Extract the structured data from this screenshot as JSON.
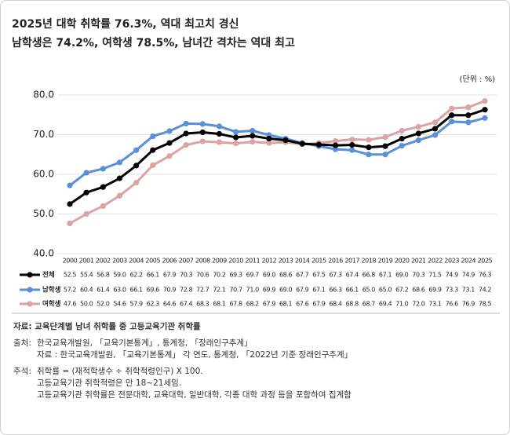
{
  "chart_data": {
    "type": "line",
    "title": "2025년 대학 취학률 76.3%, 역대 최고치 경신",
    "subtitle": "남학생은 74.2%, 여학생 78.5%, 남녀간 격차는 역대 최고",
    "unit": "(단위 : %)",
    "categories": [
      "2000",
      "2001",
      "2002",
      "2003",
      "2004",
      "2005",
      "2006",
      "2007",
      "2008",
      "2009",
      "2010",
      "2011",
      "2012",
      "2013",
      "2014",
      "2015",
      "2016",
      "2017",
      "2018",
      "2019",
      "2020",
      "2021",
      "2022",
      "2023",
      "2024",
      "2025"
    ],
    "series": [
      {
        "name": "전체",
        "color": "#000000",
        "values": [
          52.5,
          55.4,
          56.8,
          59.0,
          62.2,
          66.1,
          67.9,
          70.3,
          70.6,
          70.2,
          69.3,
          69.7,
          69.0,
          68.6,
          67.7,
          67.5,
          67.3,
          67.4,
          66.8,
          67.1,
          69.0,
          70.3,
          71.5,
          74.9,
          74.9,
          76.3
        ],
        "value_labels": [
          "52.5",
          "55.4",
          "56.8",
          "59.0",
          "62.2",
          "66.1",
          "67.9",
          "70.3",
          "70.6",
          "70.2",
          "69.3",
          "69.7",
          "69.0",
          "68.6",
          "67.7",
          "67.5",
          "67.3",
          "67.4",
          "66.8",
          "67.1",
          "69.0",
          "70.3",
          "71.5",
          "74.9",
          "74.9",
          "76.3"
        ]
      },
      {
        "name": "남학생",
        "color": "#5b8fd6",
        "values": [
          57.2,
          60.4,
          61.4,
          63.0,
          66.1,
          69.6,
          70.9,
          72.8,
          72.7,
          72.1,
          70.7,
          71.0,
          69.9,
          69.0,
          67.9,
          67.1,
          66.3,
          66.1,
          65.0,
          65.0,
          67.2,
          68.6,
          69.9,
          73.3,
          73.1,
          74.2
        ],
        "value_labels": [
          "57.2",
          "60.4",
          "61.4",
          "63.0",
          "66.1",
          "69.6",
          "70.9",
          "72.8",
          "72.7",
          "72.1",
          "70.7",
          "71.0",
          "69.9",
          "69.0",
          "67.9",
          "67.1",
          "66.3",
          "66.1",
          "65.0",
          "65.0",
          "67.2",
          "68.6",
          "69.9",
          "73.3",
          "73.1",
          "74.2"
        ]
      },
      {
        "name": "여학생",
        "color": "#dba3a3",
        "values": [
          47.6,
          50.0,
          52.0,
          54.6,
          57.9,
          62.3,
          64.6,
          67.4,
          68.3,
          68.1,
          67.8,
          68.2,
          67.9,
          68.1,
          67.6,
          67.9,
          68.4,
          68.8,
          68.7,
          69.4,
          71.0,
          72.0,
          73.1,
          76.6,
          76.9,
          78.5
        ],
        "value_labels": [
          "47.6",
          "50.0",
          "52.0",
          "54.6",
          "57.9",
          "62.3",
          "64.6",
          "67.4",
          "68.3",
          "68.1",
          "67.8",
          "68.2",
          "67.9",
          "68.1",
          "67.6",
          "67.9",
          "68.4",
          "68.8",
          "68.7",
          "69.4",
          "71.0",
          "72.0",
          "73.1",
          "76.6",
          "76.9",
          "78.5"
        ]
      }
    ],
    "ylim": [
      40,
      80
    ],
    "yticks": [
      {
        "value": 40,
        "label": "40.0"
      },
      {
        "value": 50,
        "label": "50.0"
      },
      {
        "value": 60,
        "label": "60.0"
      },
      {
        "value": 70,
        "label": "70.0"
      },
      {
        "value": 80,
        "label": "80.0"
      }
    ],
    "grid": true
  },
  "notes": {
    "source": "자료: 교육단계별 남녀 취학률 중 고등교육기관 취학률",
    "origin": {
      "label": "출처:",
      "lines": [
        "한국교육개발원, 「교육기본통계」, 통계청, 「장래인구추계」",
        "자료 : 한국교육개발원, 「교육기본통계」 각 연도, 통계청, 「2022년 기준 장래인구추계」"
      ]
    },
    "remarks": {
      "label": "주석:",
      "lines": [
        "취학률 = (재적학생수 ÷ 취학적령인구) X 100.",
        "고등교육기관 취학적령은 만 18~21세임.",
        "고등교육기관 취학률은 전문대학, 교육대학, 일반대학, 각종 대학 과정 등을 포함하여 집계함"
      ]
    }
  }
}
